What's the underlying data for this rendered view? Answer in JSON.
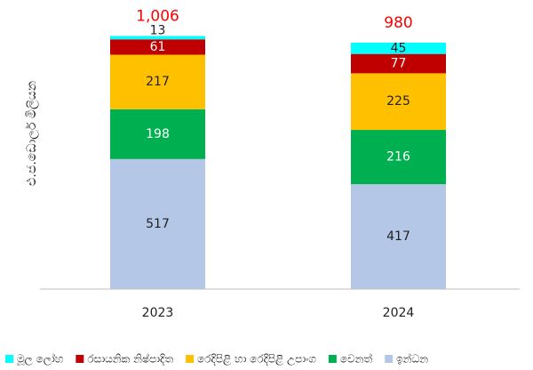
{
  "chart_data": {
    "type": "stacked_bar",
    "ylabel": "එ.ජ.ඩොලර් මිලියන",
    "categories": [
      "2023",
      "2024"
    ],
    "series": [
      {
        "name": "ඉන්ධන",
        "color": "#b4c7e7",
        "label_color": "#222222",
        "values": [
          517,
          417
        ]
      },
      {
        "name": "වෙනත්",
        "color": "#00b050",
        "label_color": "#ffffff",
        "values": [
          198,
          216
        ]
      },
      {
        "name": "රෙදිපිළි හා රෙදිපිළි උපාංග",
        "color": "#ffc000",
        "label_color": "#222222",
        "values": [
          217,
          225
        ]
      },
      {
        "name": "රසායනික නිෂ්පාදිත",
        "color": "#c00000",
        "label_color": "#ffffff",
        "values": [
          61,
          77
        ]
      },
      {
        "name": "මූල ලෝහ",
        "color": "#00ffff",
        "label_color": "#222222",
        "values": [
          13,
          45
        ]
      }
    ],
    "totals": [
      1006,
      980
    ],
    "total_labels": [
      "1,006",
      "980"
    ],
    "total_color": "#ff0000",
    "ylim": [
      0,
      1100
    ],
    "legend": "bottom"
  }
}
